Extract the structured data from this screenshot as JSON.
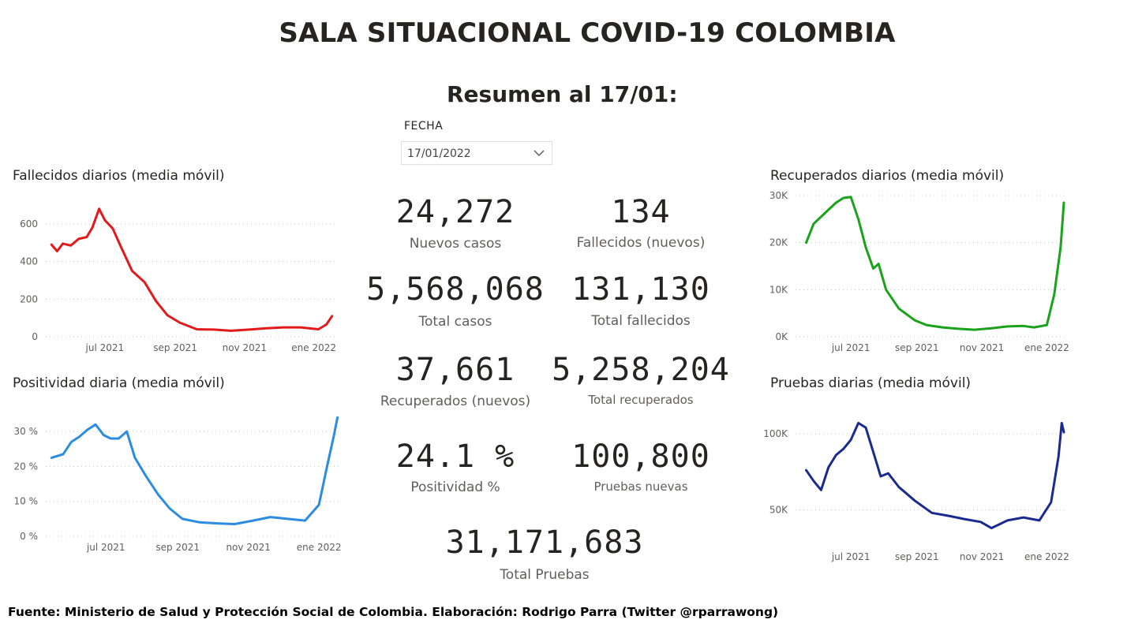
{
  "header": {
    "title": "SALA SITUACIONAL COVID-19 COLOMBIA",
    "subtitle": "Resumen al 17/01:"
  },
  "filter": {
    "label": "FECHA",
    "value": "17/01/2022",
    "chevron_icon": "chevron-down-icon"
  },
  "kpis": {
    "nuevos_casos": {
      "value": "24,272",
      "label": "Nuevos casos"
    },
    "fallecidos_nuevos": {
      "value": "134",
      "label": "Fallecidos (nuevos)"
    },
    "total_casos": {
      "value": "5,568,068",
      "label": "Total casos"
    },
    "total_fallecidos": {
      "value": "131,130",
      "label": "Total fallecidos"
    },
    "recuperados_nuevos": {
      "value": "37,661",
      "label": "Recuperados (nuevos)"
    },
    "total_recuperados": {
      "value": "5,258,204",
      "label": "Total recuperados"
    },
    "positividad": {
      "value": "24.1 %",
      "label": "Positividad %"
    },
    "pruebas_nuevas": {
      "value": "100,800",
      "label": "Pruebas nuevas"
    },
    "total_pruebas": {
      "value": "31,171,683",
      "label": "Total Pruebas"
    }
  },
  "footer": {
    "text": "Fuente: Ministerio de Salud y Protección Social de Colombia. Elaboración: Rodrigo Parra (Twitter @rparrawong)"
  },
  "chart_data": [
    {
      "id": "fallecidos",
      "type": "line",
      "title": "Fallecidos diarios (media móvil)",
      "color": "#e31a1c",
      "x_ticks": [
        "jul 2021",
        "sep 2021",
        "nov 2021",
        "ene 2022"
      ],
      "y_ticks": [
        "0",
        "200",
        "400",
        "600"
      ],
      "ylim": [
        0,
        700
      ],
      "grid": true,
      "x": [
        "2021-05-15",
        "2021-05-20",
        "2021-05-25",
        "2021-06-01",
        "2021-06-08",
        "2021-06-15",
        "2021-06-20",
        "2021-06-26",
        "2021-07-01",
        "2021-07-08",
        "2021-07-15",
        "2021-07-25",
        "2021-08-05",
        "2021-08-15",
        "2021-08-25",
        "2021-09-05",
        "2021-09-20",
        "2021-10-05",
        "2021-10-20",
        "2021-11-05",
        "2021-11-20",
        "2021-12-05",
        "2021-12-20",
        "2022-01-05",
        "2022-01-12",
        "2022-01-17"
      ],
      "values": [
        490,
        455,
        495,
        485,
        520,
        530,
        580,
        680,
        620,
        575,
        480,
        350,
        290,
        190,
        115,
        75,
        40,
        38,
        32,
        38,
        45,
        50,
        50,
        40,
        65,
        110
      ]
    },
    {
      "id": "positividad",
      "type": "line",
      "title": "Positividad diaria (media móvil)",
      "color": "#2b8ce0",
      "x_ticks": [
        "jul 2021",
        "sep 2021",
        "nov 2021",
        "ene 2022"
      ],
      "y_ticks": [
        "0 %",
        "10 %",
        "20 %",
        "30 %"
      ],
      "ylim": [
        0,
        35
      ],
      "grid": true,
      "x": [
        "2021-05-15",
        "2021-05-25",
        "2021-06-01",
        "2021-06-08",
        "2021-06-15",
        "2021-06-22",
        "2021-06-29",
        "2021-07-05",
        "2021-07-12",
        "2021-07-19",
        "2021-07-26",
        "2021-08-05",
        "2021-08-15",
        "2021-08-25",
        "2021-09-05",
        "2021-09-20",
        "2021-10-05",
        "2021-10-20",
        "2021-11-05",
        "2021-11-20",
        "2021-12-05",
        "2021-12-20",
        "2022-01-01",
        "2022-01-08",
        "2022-01-14",
        "2022-01-17"
      ],
      "values": [
        22.5,
        23.5,
        27,
        28.5,
        30.5,
        32,
        29,
        28,
        28,
        30,
        22.5,
        17,
        12,
        8,
        5,
        4,
        3.7,
        3.5,
        4.5,
        5.5,
        5,
        4.5,
        9,
        20,
        29,
        34
      ]
    },
    {
      "id": "recuperados",
      "type": "line",
      "title": "Recuperados diarios (media móvil)",
      "color": "#1aa31a",
      "x_ticks": [
        "jul 2021",
        "sep 2021",
        "nov 2021",
        "ene 2022"
      ],
      "y_ticks": [
        "0K",
        "10K",
        "20K",
        "30K"
      ],
      "ylim": [
        0,
        30000
      ],
      "grid": true,
      "x": [
        "2021-05-20",
        "2021-05-27",
        "2021-06-03",
        "2021-06-10",
        "2021-06-17",
        "2021-06-24",
        "2021-07-01",
        "2021-07-08",
        "2021-07-15",
        "2021-07-22",
        "2021-07-27",
        "2021-08-03",
        "2021-08-15",
        "2021-08-30",
        "2021-09-10",
        "2021-09-25",
        "2021-10-10",
        "2021-10-25",
        "2021-11-10",
        "2021-11-25",
        "2021-12-10",
        "2021-12-20",
        "2022-01-01",
        "2022-01-08",
        "2022-01-14",
        "2022-01-17"
      ],
      "values": [
        20000,
        24000,
        25500,
        27000,
        28500,
        29500,
        29700,
        25000,
        19000,
        14500,
        15500,
        10000,
        6000,
        3500,
        2500,
        2000,
        1700,
        1500,
        1800,
        2200,
        2300,
        2000,
        2500,
        9000,
        19000,
        28500
      ]
    },
    {
      "id": "pruebas",
      "type": "line",
      "title": "Pruebas diarias (media móvil)",
      "color": "#1a2a8f",
      "x_ticks": [
        "jul 2021",
        "sep 2021",
        "nov 2021",
        "ene 2022"
      ],
      "y_ticks": [
        "50K",
        "100K"
      ],
      "ylim": [
        30000,
        115000
      ],
      "grid": true,
      "x": [
        "2021-05-20",
        "2021-05-27",
        "2021-06-03",
        "2021-06-10",
        "2021-06-17",
        "2021-06-24",
        "2021-07-01",
        "2021-07-08",
        "2021-07-15",
        "2021-07-22",
        "2021-07-29",
        "2021-08-05",
        "2021-08-15",
        "2021-08-30",
        "2021-09-15",
        "2021-10-01",
        "2021-10-15",
        "2021-10-31",
        "2021-11-10",
        "2021-11-25",
        "2021-12-10",
        "2021-12-25",
        "2022-01-05",
        "2022-01-12",
        "2022-01-15",
        "2022-01-17"
      ],
      "values": [
        76000,
        69000,
        63000,
        78000,
        86000,
        90000,
        96000,
        107000,
        104000,
        88000,
        72000,
        74000,
        65000,
        56000,
        48000,
        46000,
        44000,
        42000,
        38000,
        43000,
        45000,
        43000,
        55000,
        85000,
        107000,
        101000
      ]
    }
  ]
}
